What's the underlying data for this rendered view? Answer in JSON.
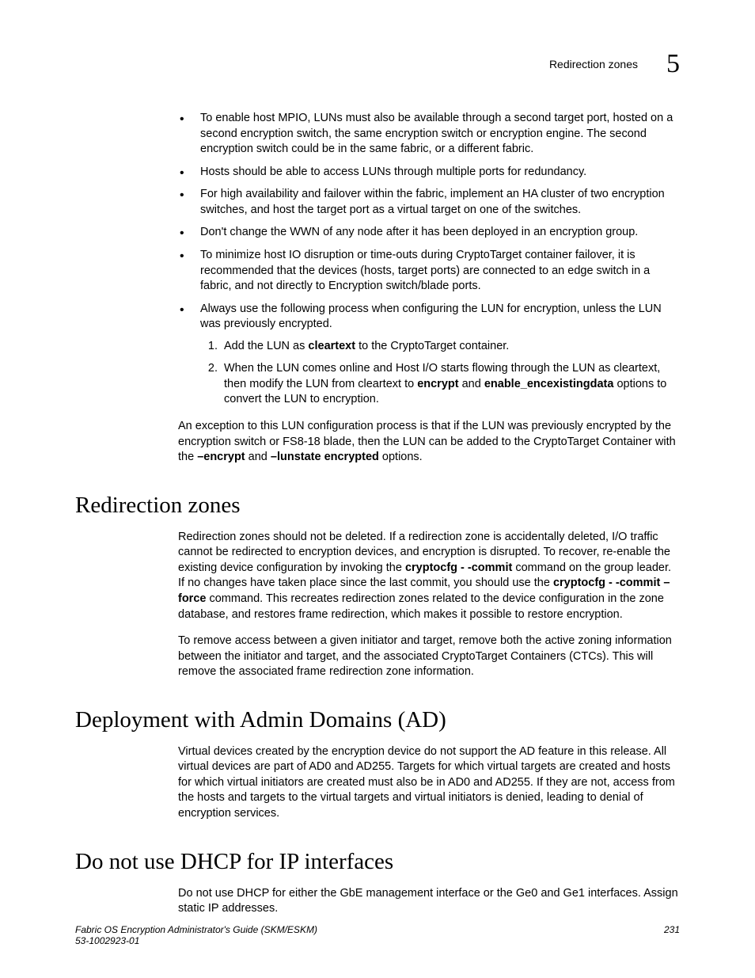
{
  "header": {
    "label": "Redirection zones",
    "chapter_number": "5"
  },
  "bullets": {
    "b1": "To enable host MPIO, LUNs must also be available through a second target port, hosted on a second encryption switch, the same encryption switch or encryption engine. The second encryption switch could be in the same fabric, or a different fabric.",
    "b2": "Hosts should be able to access LUNs through multiple ports for redundancy.",
    "b3": "For high availability and failover within the fabric, implement an HA cluster of two encryption switches, and host the target port as a virtual target on one of the switches.",
    "b4": "Don't change the WWN of any node after it has been deployed in an encryption group.",
    "b5": "To minimize host IO disruption or time-outs during CryptoTarget container failover, it is recommended that the devices (hosts, target ports) are connected to an edge switch in a fabric, and not directly to Encryption switch/blade ports.",
    "b6": "Always use the following process when configuring the LUN for encryption, unless the LUN was previously encrypted.",
    "step1_a": "Add the LUN as ",
    "step1_bold": "cleartext",
    "step1_b": " to the CryptoTarget container.",
    "step2_a": "When the LUN comes online and Host I/O starts flowing through the LUN as cleartext, then modify the LUN from cleartext to ",
    "step2_bold1": "encrypt",
    "step2_mid": " and ",
    "step2_bold2": "enable_encexistingdata",
    "step2_b": " options to convert the LUN to encryption."
  },
  "exception": {
    "a": "An exception to this LUN configuration process is that if the LUN was previously encrypted by the encryption switch or FS8-18 blade, then the LUN can be added to the CryptoTarget Container with the ",
    "b1": "–encrypt",
    "mid": " and ",
    "b2": "–lunstate encrypted",
    "c": " options."
  },
  "sections": {
    "s1_title": "Redirection zones",
    "s1_p1_a": "Redirection zones should not be deleted. If a redirection zone is accidentally deleted, I/O traffic cannot be redirected to encryption devices, and encryption is disrupted. To recover, re-enable the existing device configuration by invoking the ",
    "s1_p1_b1": "cryptocfg ",
    "s1_p1_b2": " - -commit",
    "s1_p1_c": " command on the group leader. If no changes have taken place since the last commit, you should use the ",
    "s1_p1_b3": "cryptocfg ",
    "s1_p1_b4": " - -commit –force",
    "s1_p1_d": " command. This recreates redirection zones related to the device configuration in the zone database, and restores frame redirection, which makes it possible to restore encryption.",
    "s1_p2": "To remove access between a given initiator and target, remove both the active zoning information between the initiator and target, and the associated CryptoTarget Containers (CTCs). This will remove the associated frame redirection zone information.",
    "s2_title": "Deployment with Admin Domains (AD)",
    "s2_p1": "Virtual devices created by the encryption device do not support the AD feature in this release. All virtual devices are part of AD0 and AD255. Targets for which virtual targets are created and hosts for which virtual initiators are created must also be in AD0 and AD255. If they are not, access from the hosts and targets to the virtual targets and virtual initiators is denied, leading to denial of encryption services.",
    "s3_title": "Do not use DHCP for IP interfaces",
    "s3_p1": "Do not use DHCP for either the GbE management interface or the Ge0 and Ge1 interfaces. Assign static IP addresses."
  },
  "footer": {
    "title": "Fabric OS Encryption Administrator's Guide (SKM/ESKM)",
    "docnum": "53-1002923-01",
    "page": "231"
  }
}
